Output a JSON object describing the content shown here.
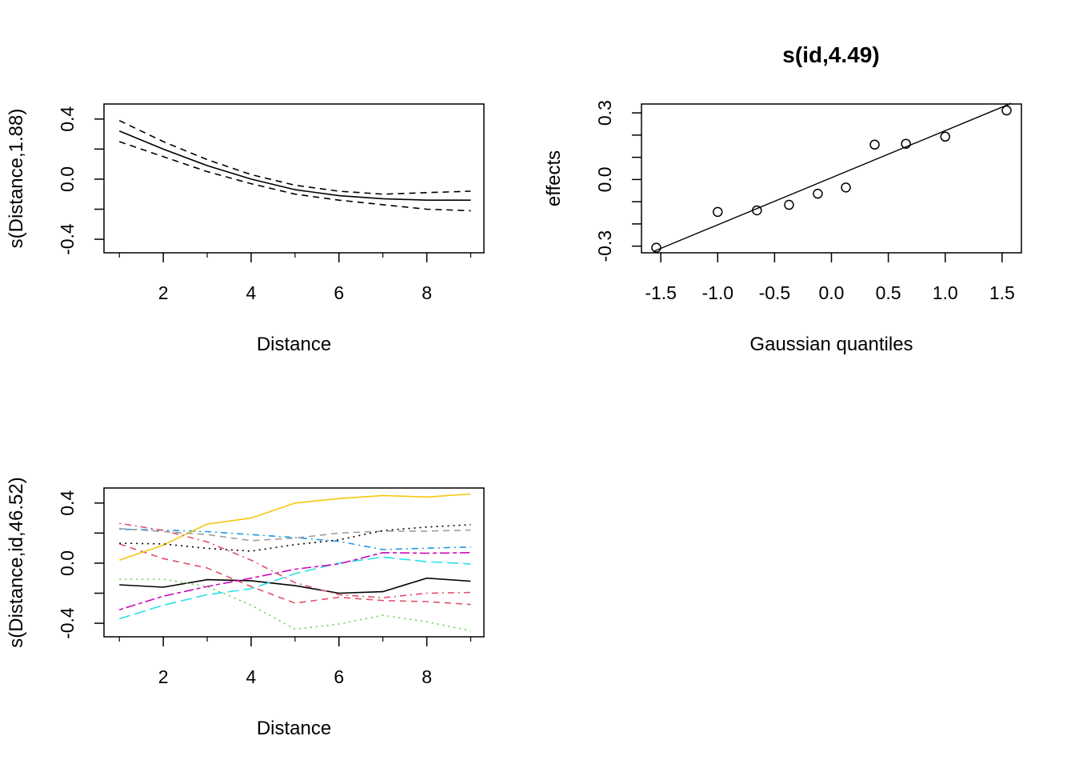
{
  "chart_data": [
    {
      "type": "line",
      "xlabel": "Distance",
      "ylabel": "s(Distance,1.88)",
      "xlim": [
        0.65,
        9.3
      ],
      "ylim": [
        -0.49,
        0.5
      ],
      "xticks": [
        2,
        4,
        6,
        8
      ],
      "xtick_labels": [
        "2",
        "4",
        "6",
        "8"
      ],
      "yticks": [
        -0.4,
        0.0,
        0.4
      ],
      "ytick_labels": [
        "-0.4",
        "0.0",
        "0.4"
      ],
      "grid": false,
      "x": [
        1,
        2,
        3,
        4,
        5,
        6,
        7,
        8,
        9
      ],
      "series": [
        {
          "style": "solid",
          "color": "#000000",
          "values": [
            0.32,
            0.2,
            0.09,
            0.0,
            -0.07,
            -0.11,
            -0.13,
            -0.14,
            -0.14
          ]
        },
        {
          "style": "dashed",
          "color": "#000000",
          "values": [
            0.39,
            0.25,
            0.13,
            0.03,
            -0.04,
            -0.08,
            -0.1,
            -0.09,
            -0.08
          ]
        },
        {
          "style": "dashed",
          "color": "#000000",
          "values": [
            0.25,
            0.15,
            0.05,
            -0.03,
            -0.1,
            -0.14,
            -0.17,
            -0.2,
            -0.21
          ]
        }
      ]
    },
    {
      "type": "scatter",
      "title": "s(id,4.49)",
      "xlabel": "Gaussian quantiles",
      "ylabel": "effects",
      "xlim": [
        -1.67,
        1.67
      ],
      "ylim": [
        -0.33,
        0.34
      ],
      "xticks": [
        -1.5,
        -1.0,
        -0.5,
        0.0,
        0.5,
        1.0,
        1.5
      ],
      "xtick_labels": [
        "-1.5",
        "-1.0",
        "-0.5",
        "0.0",
        "0.5",
        "1.0",
        "1.5"
      ],
      "yticks": [
        -0.3,
        0.0,
        0.3
      ],
      "ytick_labels": [
        "-0.3",
        "0.0",
        "0.3"
      ],
      "grid": false,
      "points": {
        "x": [
          -1.54,
          -1.0,
          -0.655,
          -0.373,
          -0.12,
          0.127,
          0.38,
          0.655,
          1.0,
          1.54
        ],
        "y": [
          -0.307,
          -0.146,
          -0.139,
          -0.114,
          -0.064,
          -0.036,
          0.157,
          0.161,
          0.193,
          0.311
        ]
      },
      "reference_line": {
        "intercept": 0.008,
        "slope": 0.212
      }
    },
    {
      "type": "line",
      "xlabel": "Distance",
      "ylabel": "s(Distance,id,46.52)",
      "xlim": [
        0.65,
        9.3
      ],
      "ylim": [
        -0.49,
        0.5
      ],
      "xticks": [
        2,
        4,
        6,
        8
      ],
      "xtick_labels": [
        "2",
        "4",
        "6",
        "8"
      ],
      "yticks": [
        -0.4,
        0.0,
        0.4
      ],
      "ytick_labels": [
        "-0.4",
        "0.0",
        "0.4"
      ],
      "grid": false,
      "x": [
        1,
        2,
        3,
        4,
        5,
        6,
        7,
        8,
        9
      ],
      "series": [
        {
          "style": "solid",
          "color": "#000000",
          "values": [
            -0.144,
            -0.16,
            -0.11,
            -0.117,
            -0.15,
            -0.2,
            -0.19,
            -0.1,
            -0.12
          ]
        },
        {
          "style": "dashed",
          "color": "#DF536B",
          "values": [
            0.128,
            0.03,
            -0.032,
            -0.156,
            -0.266,
            -0.227,
            -0.249,
            -0.256,
            -0.275
          ]
        },
        {
          "style": "dotted",
          "color": "#61D04F",
          "values": [
            -0.107,
            -0.107,
            -0.155,
            -0.28,
            -0.44,
            -0.405,
            -0.347,
            -0.39,
            -0.45
          ]
        },
        {
          "style": "dotdash",
          "color": "#2297E6",
          "values": [
            0.226,
            0.22,
            0.21,
            0.19,
            0.17,
            0.145,
            0.09,
            0.1,
            0.107
          ]
        },
        {
          "style": "longdash",
          "color": "#28E2E5",
          "values": [
            -0.37,
            -0.28,
            -0.21,
            -0.17,
            -0.07,
            0.0,
            0.04,
            0.01,
            -0.005
          ]
        },
        {
          "style": "twodash",
          "color": "#CD0BBC",
          "values": [
            -0.31,
            -0.22,
            -0.155,
            -0.1,
            -0.04,
            -0.005,
            0.07,
            0.066,
            0.07
          ]
        },
        {
          "style": "solid",
          "color": "#F5C710",
          "values": [
            0.02,
            0.12,
            0.26,
            0.3,
            0.4,
            0.43,
            0.45,
            0.44,
            0.46
          ]
        },
        {
          "style": "dashed",
          "color": "#9E9E9E",
          "values": [
            0.23,
            0.21,
            0.19,
            0.15,
            0.167,
            0.2,
            0.213,
            0.213,
            0.22
          ]
        },
        {
          "style": "dotted",
          "color": "#000000",
          "values": [
            0.133,
            0.128,
            0.098,
            0.08,
            0.123,
            0.155,
            0.217,
            0.24,
            0.256
          ]
        },
        {
          "style": "dotdash",
          "color": "#DF536B",
          "values": [
            0.265,
            0.218,
            0.141,
            0.02,
            -0.13,
            -0.21,
            -0.23,
            -0.2,
            -0.195
          ]
        }
      ]
    }
  ]
}
